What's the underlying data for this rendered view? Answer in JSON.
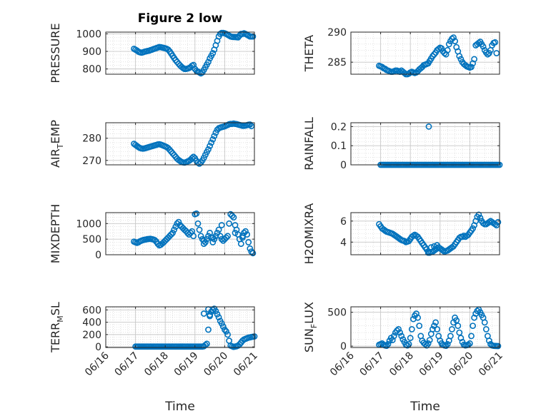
{
  "figure": {
    "title": "Figure 2 low",
    "xlabel": "Time",
    "x_ticks": [
      "06/16",
      "06/17",
      "06/18",
      "06/19",
      "06/20",
      "06/21"
    ],
    "marker_color": "#0072BD"
  },
  "chart_data": [
    {
      "type": "scatter",
      "ylabel": "PRESSURE",
      "title": "Figure 2 low",
      "xlim": [
        0,
        5
      ],
      "ylim": [
        770,
        1010
      ],
      "yticks": [
        800,
        900,
        1000
      ],
      "x": [
        0.95,
        1.0,
        1.05,
        1.1,
        1.15,
        1.2,
        1.25,
        1.3,
        1.35,
        1.4,
        1.45,
        1.5,
        1.55,
        1.6,
        1.65,
        1.7,
        1.75,
        1.8,
        1.85,
        1.9,
        1.95,
        2.0,
        2.05,
        2.1,
        2.15,
        2.2,
        2.25,
        2.3,
        2.35,
        2.4,
        2.45,
        2.5,
        2.55,
        2.6,
        2.65,
        2.7,
        2.75,
        2.8,
        2.85,
        2.9,
        2.95,
        3.0,
        3.05,
        3.1,
        3.15,
        3.2,
        3.25,
        3.3,
        3.35,
        3.4,
        3.45,
        3.5,
        3.55,
        3.6,
        3.65,
        3.7,
        3.75,
        3.8,
        3.85,
        3.9,
        3.95,
        4.0,
        4.05,
        4.1,
        4.15,
        4.2,
        4.25,
        4.3,
        4.35,
        4.4,
        4.45,
        4.5,
        4.55,
        4.6,
        4.65,
        4.7,
        4.75,
        4.8,
        4.85,
        4.9,
        4.95
      ],
      "y": [
        915,
        910,
        905,
        898,
        895,
        893,
        895,
        898,
        900,
        902,
        904,
        907,
        910,
        913,
        916,
        919,
        922,
        925,
        924,
        922,
        920,
        918,
        915,
        910,
        900,
        888,
        875,
        862,
        850,
        840,
        830,
        820,
        812,
        805,
        800,
        800,
        802,
        805,
        810,
        818,
        823,
        800,
        790,
        785,
        780,
        775,
        780,
        795,
        810,
        825,
        840,
        860,
        875,
        890,
        910,
        935,
        960,
        985,
        1000,
        1005,
        1005,
        1003,
        1000,
        995,
        990,
        985,
        983,
        982,
        982,
        981,
        980,
        990,
        1000,
        1000,
        1003,
        1000,
        995,
        990,
        985,
        985,
        985
      ]
    },
    {
      "type": "scatter",
      "ylabel": "THETA",
      "xlim": [
        0,
        5
      ],
      "ylim": [
        283,
        290
      ],
      "yticks": [
        285,
        290
      ],
      "x": [
        0.95,
        1.0,
        1.05,
        1.1,
        1.15,
        1.2,
        1.25,
        1.3,
        1.35,
        1.4,
        1.45,
        1.5,
        1.55,
        1.6,
        1.65,
        1.7,
        1.75,
        1.8,
        1.85,
        1.9,
        1.95,
        2.0,
        2.05,
        2.1,
        2.15,
        2.2,
        2.25,
        2.3,
        2.35,
        2.4,
        2.45,
        2.5,
        2.55,
        2.6,
        2.65,
        2.7,
        2.75,
        2.8,
        2.85,
        2.9,
        2.95,
        3.0,
        3.05,
        3.1,
        3.15,
        3.2,
        3.25,
        3.3,
        3.35,
        3.4,
        3.45,
        3.5,
        3.55,
        3.6,
        3.65,
        3.7,
        3.75,
        3.8,
        3.85,
        3.9,
        3.95,
        4.0,
        4.05,
        4.1,
        4.15,
        4.2,
        4.25,
        4.3,
        4.35,
        4.4,
        4.45,
        4.5,
        4.55,
        4.6,
        4.65,
        4.7,
        4.75,
        4.8,
        4.85,
        4.9
      ],
      "y": [
        284.4,
        284.3,
        284.2,
        284.0,
        283.9,
        283.7,
        283.6,
        283.5,
        283.4,
        283.4,
        283.5,
        283.6,
        283.6,
        283.5,
        283.4,
        283.6,
        283.4,
        283.2,
        283.0,
        283.0,
        283.1,
        283.3,
        283.4,
        283.3,
        283.2,
        283.3,
        283.5,
        283.8,
        284.0,
        284.2,
        284.5,
        284.6,
        284.7,
        284.8,
        285.2,
        285.6,
        286.0,
        286.3,
        286.6,
        287.0,
        287.2,
        287.4,
        287.3,
        286.8,
        286.5,
        286.3,
        287.0,
        288.0,
        288.5,
        288.9,
        289.1,
        288.5,
        287.5,
        286.8,
        286.0,
        285.5,
        285.0,
        284.7,
        284.5,
        284.3,
        284.2,
        284.1,
        284.2,
        284.8,
        285.5,
        287.8,
        288.0,
        288.2,
        288.4,
        288.0,
        287.6,
        287.0,
        286.6,
        286.3,
        286.5,
        287.0,
        287.8,
        288.2,
        288.3,
        286.5
      ]
    },
    {
      "type": "scatter",
      "ylabel": "AIR_TEMP",
      "xlim": [
        0,
        5
      ],
      "ylim": [
        268,
        287
      ],
      "yticks": [
        270,
        280
      ],
      "x": [
        0.95,
        1.0,
        1.05,
        1.1,
        1.15,
        1.2,
        1.25,
        1.3,
        1.35,
        1.4,
        1.45,
        1.5,
        1.55,
        1.6,
        1.65,
        1.7,
        1.75,
        1.8,
        1.85,
        1.9,
        1.95,
        2.0,
        2.05,
        2.1,
        2.15,
        2.2,
        2.25,
        2.3,
        2.35,
        2.4,
        2.45,
        2.5,
        2.55,
        2.6,
        2.65,
        2.7,
        2.75,
        2.8,
        2.85,
        2.9,
        2.95,
        3.0,
        3.05,
        3.1,
        3.15,
        3.2,
        3.25,
        3.3,
        3.35,
        3.4,
        3.45,
        3.5,
        3.55,
        3.6,
        3.65,
        3.7,
        3.75,
        3.8,
        3.85,
        3.9,
        3.95,
        4.0,
        4.05,
        4.1,
        4.15,
        4.2,
        4.25,
        4.3,
        4.35,
        4.4,
        4.45,
        4.5,
        4.55,
        4.6,
        4.65,
        4.7,
        4.75,
        4.8,
        4.85,
        4.9
      ],
      "y": [
        277.5,
        277.0,
        276.5,
        276.0,
        275.6,
        275.4,
        275.3,
        275.4,
        275.6,
        275.8,
        276.0,
        276.2,
        276.4,
        276.6,
        276.8,
        277.0,
        277.2,
        277.3,
        277.1,
        276.9,
        276.6,
        276.3,
        276.0,
        275.5,
        274.8,
        274.0,
        273.2,
        272.4,
        271.6,
        270.8,
        270.2,
        269.7,
        269.3,
        269.1,
        269.0,
        269.2,
        269.5,
        269.8,
        270.3,
        271.0,
        271.6,
        271.0,
        269.8,
        269.0,
        268.5,
        269.0,
        270.0,
        271.2,
        272.5,
        273.8,
        275.0,
        276.5,
        278.0,
        279.5,
        281.0,
        282.5,
        283.8,
        284.5,
        284.8,
        285.0,
        285.2,
        285.4,
        285.7,
        286.0,
        286.3,
        286.5,
        286.5,
        286.6,
        286.5,
        286.4,
        286.2,
        286.0,
        285.8,
        285.6,
        285.6,
        285.7,
        285.9,
        286.1,
        286.2,
        285.5
      ]
    },
    {
      "type": "scatter",
      "ylabel": "RAINFALL",
      "xlim": [
        0,
        5
      ],
      "ylim": [
        0,
        0.22
      ],
      "yticks": [
        0,
        0.1,
        0.2
      ],
      "x": [
        1.0,
        1.05,
        1.1,
        1.15,
        1.2,
        1.25,
        1.3,
        1.35,
        1.4,
        1.45,
        1.5,
        1.55,
        1.6,
        1.65,
        1.7,
        1.75,
        1.8,
        1.85,
        1.9,
        1.95,
        2.0,
        2.05,
        2.1,
        2.15,
        2.2,
        2.25,
        2.3,
        2.35,
        2.4,
        2.45,
        2.5,
        2.55,
        2.6,
        2.65,
        2.7,
        2.75,
        2.8,
        2.85,
        2.9,
        2.95,
        3.0,
        3.05,
        3.1,
        3.15,
        3.2,
        3.25,
        3.3,
        3.35,
        3.4,
        3.45,
        3.5,
        3.55,
        3.6,
        3.65,
        3.7,
        3.75,
        3.8,
        3.85,
        3.9,
        3.95,
        4.0,
        4.05,
        4.1,
        4.15,
        4.2,
        4.25,
        4.3,
        4.35,
        4.4,
        4.45,
        4.5,
        4.55,
        4.6,
        4.65,
        4.7,
        4.75,
        4.8,
        4.85,
        4.9,
        4.95,
        5.0,
        2.62
      ],
      "y": [
        0,
        0,
        0,
        0,
        0,
        0,
        0,
        0,
        0,
        0,
        0,
        0,
        0,
        0,
        0,
        0,
        0,
        0,
        0,
        0,
        0,
        0,
        0,
        0,
        0,
        0,
        0,
        0,
        0,
        0,
        0,
        0,
        0,
        0,
        0,
        0,
        0,
        0,
        0,
        0,
        0,
        0,
        0,
        0,
        0,
        0,
        0,
        0,
        0,
        0,
        0,
        0,
        0,
        0,
        0,
        0,
        0,
        0,
        0,
        0,
        0,
        0,
        0,
        0,
        0,
        0,
        0,
        0,
        0,
        0,
        0,
        0,
        0,
        0,
        0,
        0,
        0,
        0,
        0,
        0,
        0,
        0.2
      ]
    },
    {
      "type": "scatter",
      "ylabel": "MIXDEPTH",
      "xlim": [
        0,
        5
      ],
      "ylim": [
        0,
        1350
      ],
      "yticks": [
        0,
        500,
        1000
      ],
      "x": [
        0.95,
        1.0,
        1.05,
        1.1,
        1.15,
        1.2,
        1.25,
        1.3,
        1.35,
        1.4,
        1.45,
        1.5,
        1.55,
        1.6,
        1.65,
        1.7,
        1.75,
        1.8,
        1.85,
        1.9,
        1.95,
        2.0,
        2.05,
        2.1,
        2.15,
        2.2,
        2.25,
        2.3,
        2.35,
        2.4,
        2.45,
        2.5,
        2.55,
        2.6,
        2.65,
        2.7,
        2.75,
        2.8,
        2.85,
        2.9,
        2.95,
        3.0,
        3.05,
        3.1,
        3.15,
        3.2,
        3.25,
        3.3,
        3.35,
        3.4,
        3.45,
        3.5,
        3.55,
        3.6,
        3.65,
        3.7,
        3.75,
        3.8,
        3.85,
        3.9,
        3.95,
        4.0,
        4.05,
        4.1,
        4.15,
        4.2,
        4.25,
        4.3,
        4.35,
        4.4,
        4.45,
        4.5,
        4.55,
        4.6,
        4.65,
        4.7,
        4.75,
        4.8,
        4.85,
        4.9,
        4.95,
        3.3,
        3.6,
        3.9,
        4.35,
        4.6
      ],
      "y": [
        420,
        400,
        380,
        400,
        430,
        450,
        470,
        480,
        490,
        500,
        505,
        510,
        500,
        490,
        470,
        420,
        350,
        300,
        320,
        360,
        400,
        450,
        500,
        550,
        600,
        650,
        700,
        800,
        900,
        1000,
        1050,
        950,
        900,
        850,
        800,
        760,
        700,
        650,
        700,
        750,
        600,
        1300,
        1320,
        1000,
        800,
        600,
        500,
        450,
        400,
        500,
        600,
        700,
        550,
        400,
        500,
        600,
        700,
        800,
        600,
        500,
        450,
        500,
        550,
        600,
        1000,
        1300,
        1250,
        1200,
        950,
        800,
        650,
        500,
        350,
        600,
        700,
        750,
        650,
        400,
        200,
        100,
        50,
        350,
        550,
        950,
        700,
        550
      ]
    },
    {
      "type": "scatter",
      "ylabel": "H2OMIXRA",
      "xlim": [
        0,
        5
      ],
      "ylim": [
        2.8,
        6.8
      ],
      "yticks": [
        4,
        6
      ],
      "x": [
        0.95,
        1.0,
        1.05,
        1.1,
        1.15,
        1.2,
        1.25,
        1.3,
        1.35,
        1.4,
        1.45,
        1.5,
        1.55,
        1.6,
        1.65,
        1.7,
        1.75,
        1.8,
        1.85,
        1.9,
        1.95,
        2.0,
        2.05,
        2.1,
        2.15,
        2.2,
        2.25,
        2.3,
        2.35,
        2.4,
        2.45,
        2.5,
        2.55,
        2.6,
        2.65,
        2.7,
        2.75,
        2.8,
        2.85,
        2.9,
        2.95,
        3.0,
        3.05,
        3.1,
        3.15,
        3.2,
        3.25,
        3.3,
        3.35,
        3.4,
        3.45,
        3.5,
        3.55,
        3.6,
        3.65,
        3.7,
        3.75,
        3.8,
        3.85,
        3.9,
        3.95,
        4.0,
        4.05,
        4.1,
        4.15,
        4.2,
        4.25,
        4.3,
        4.35,
        4.4,
        4.45,
        4.5,
        4.55,
        4.6,
        4.65,
        4.7,
        4.75,
        4.8,
        4.85,
        4.9,
        4.95,
        2.6,
        2.7,
        2.8,
        2.9
      ],
      "y": [
        5.7,
        5.5,
        5.3,
        5.2,
        5.1,
        5.0,
        4.95,
        4.9,
        4.85,
        4.8,
        4.7,
        4.6,
        4.5,
        4.4,
        4.3,
        4.2,
        4.15,
        4.1,
        4.0,
        4.05,
        4.1,
        4.3,
        4.5,
        4.6,
        4.7,
        4.6,
        4.5,
        4.3,
        4.1,
        3.9,
        3.7,
        3.5,
        3.3,
        3.1,
        3.0,
        3.05,
        3.1,
        3.2,
        3.3,
        3.4,
        3.5,
        3.4,
        3.3,
        3.2,
        3.1,
        3.15,
        3.2,
        3.3,
        3.4,
        3.5,
        3.6,
        3.8,
        4.0,
        4.2,
        4.4,
        4.5,
        4.5,
        4.6,
        4.5,
        4.6,
        4.7,
        4.9,
        5.1,
        5.3,
        5.6,
        6.0,
        6.4,
        6.6,
        6.3,
        6.0,
        5.8,
        5.7,
        5.7,
        5.8,
        5.9,
        6.0,
        5.9,
        5.8,
        5.7,
        5.6,
        5.9,
        3.0,
        3.5,
        3.6,
        3.7
      ]
    },
    {
      "type": "scatter",
      "ylabel": "TERR_MSL",
      "xlim": [
        0,
        5
      ],
      "ylim": [
        -10,
        650
      ],
      "yticks": [
        0,
        200,
        400,
        600
      ],
      "x": [
        1.0,
        1.05,
        1.1,
        1.15,
        1.2,
        1.25,
        1.3,
        1.35,
        1.4,
        1.45,
        1.5,
        1.55,
        1.6,
        1.65,
        1.7,
        1.75,
        1.8,
        1.85,
        1.9,
        1.95,
        2.0,
        2.05,
        2.1,
        2.15,
        2.2,
        2.25,
        2.3,
        2.35,
        2.4,
        2.45,
        2.5,
        2.55,
        2.6,
        2.65,
        2.7,
        2.75,
        2.8,
        2.85,
        2.9,
        2.95,
        3.0,
        3.05,
        3.1,
        3.15,
        3.2,
        3.25,
        3.3,
        3.35,
        3.4,
        3.45,
        3.5,
        3.55,
        3.6,
        3.65,
        3.7,
        3.75,
        3.8,
        3.85,
        3.9,
        3.95,
        4.0,
        4.05,
        4.1,
        4.15,
        4.2,
        4.25,
        4.3,
        4.35,
        4.4,
        4.45,
        4.5,
        4.55,
        4.6,
        4.65,
        4.7,
        4.75,
        4.8,
        4.85,
        4.9,
        4.95,
        5.0,
        3.3,
        3.45,
        3.5
      ],
      "y": [
        5,
        5,
        5,
        5,
        5,
        5,
        5,
        5,
        5,
        5,
        5,
        5,
        5,
        5,
        5,
        5,
        5,
        5,
        5,
        5,
        5,
        5,
        5,
        5,
        5,
        5,
        5,
        5,
        5,
        5,
        5,
        5,
        5,
        5,
        5,
        5,
        5,
        5,
        5,
        5,
        5,
        5,
        5,
        5,
        5,
        5,
        10,
        30,
        50,
        280,
        520,
        570,
        600,
        620,
        580,
        530,
        480,
        420,
        380,
        330,
        280,
        250,
        200,
        100,
        20,
        10,
        0,
        5,
        10,
        20,
        40,
        70,
        100,
        120,
        130,
        140,
        150,
        155,
        160,
        165,
        170,
        540,
        610,
        500
      ]
    },
    {
      "type": "scatter",
      "ylabel": "SUN_FLUX",
      "xlim": [
        0,
        5
      ],
      "ylim": [
        -20,
        580
      ],
      "yticks": [
        0,
        500
      ],
      "x": [
        0.95,
        1.0,
        1.05,
        1.1,
        1.15,
        1.2,
        1.25,
        1.3,
        1.35,
        1.4,
        1.45,
        1.5,
        1.55,
        1.6,
        1.65,
        1.7,
        1.75,
        1.8,
        1.85,
        1.9,
        1.95,
        2.0,
        2.05,
        2.1,
        2.15,
        2.2,
        2.25,
        2.3,
        2.35,
        2.4,
        2.45,
        2.5,
        2.55,
        2.6,
        2.65,
        2.7,
        2.75,
        2.8,
        2.85,
        2.9,
        2.95,
        3.0,
        3.05,
        3.1,
        3.15,
        3.2,
        3.25,
        3.3,
        3.35,
        3.4,
        3.45,
        3.5,
        3.55,
        3.6,
        3.65,
        3.7,
        3.75,
        3.8,
        3.85,
        3.9,
        3.95,
        4.0,
        4.05,
        4.1,
        4.15,
        4.2,
        4.25,
        4.3,
        4.35,
        4.4,
        4.45,
        4.5,
        4.55,
        4.6,
        4.65,
        4.7,
        4.75,
        4.8,
        4.85,
        4.9,
        4.95
      ],
      "y": [
        20,
        30,
        40,
        20,
        10,
        5,
        30,
        80,
        120,
        90,
        150,
        200,
        230,
        250,
        200,
        150,
        100,
        60,
        20,
        10,
        30,
        120,
        250,
        400,
        450,
        480,
        420,
        300,
        150,
        80,
        50,
        30,
        10,
        40,
        90,
        180,
        250,
        300,
        350,
        250,
        150,
        80,
        40,
        20,
        10,
        5,
        30,
        80,
        150,
        250,
        350,
        420,
        380,
        300,
        200,
        120,
        60,
        20,
        10,
        15,
        20,
        40,
        150,
        300,
        420,
        480,
        520,
        540,
        500,
        460,
        420,
        350,
        250,
        150,
        80,
        30,
        10,
        5,
        3,
        2,
        1
      ]
    }
  ]
}
